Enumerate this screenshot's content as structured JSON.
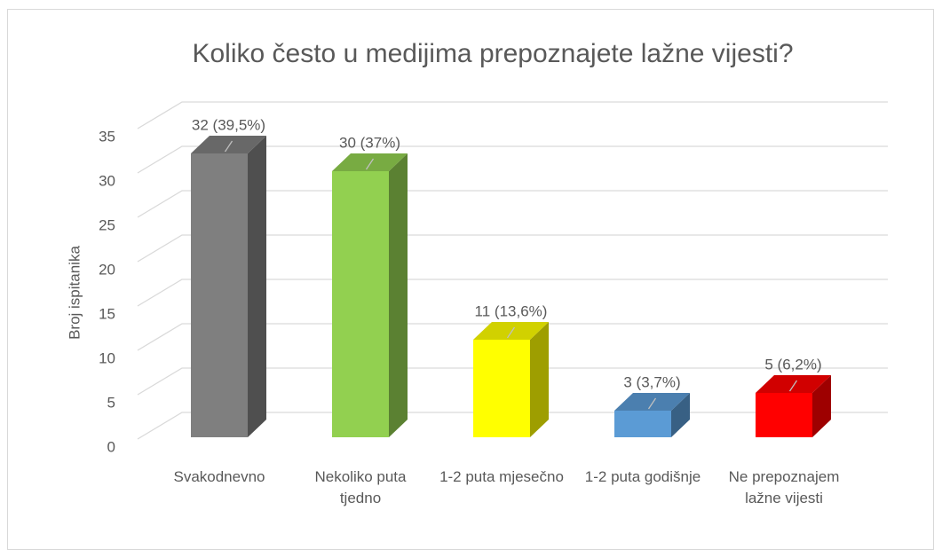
{
  "chart_data": {
    "type": "bar3d",
    "title": "Koliko često u medijima prepoznajete lažne vijesti?",
    "y_label": "Broj ispitanika",
    "categories": [
      "Svakodnevno",
      "Nekoliko puta tjedno",
      "1-2 puta mjesečno",
      "1-2 puta godišnje",
      "Ne prepoznajem lažne vijesti"
    ],
    "values": [
      32,
      30,
      11,
      3,
      5
    ],
    "value_labels": [
      "32 (39,5%)",
      "30 (37%)",
      "11 (13,6%)",
      "3 (3,7%)",
      "5 (6,2%)"
    ],
    "colors": [
      "#7f7f7f",
      "#92d050",
      "#ffff00",
      "#5b9bd5",
      "#ff0000"
    ],
    "ylim": [
      0,
      35
    ],
    "yticks": [
      0,
      5,
      10,
      15,
      20,
      25,
      30,
      35
    ],
    "grid": true
  }
}
